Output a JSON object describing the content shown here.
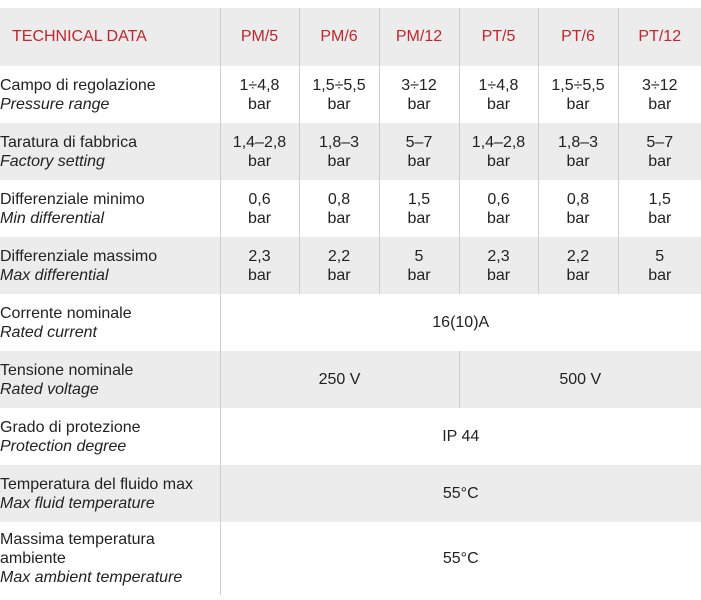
{
  "header": {
    "title": "TECHNICAL DATA",
    "models": [
      "PM/5",
      "PM/6",
      "PM/12",
      "PT/5",
      "PT/6",
      "PT/12"
    ]
  },
  "rows": [
    {
      "it": "Campo di regolazione",
      "en": "Pressure range",
      "values": [
        [
          "1÷4,8",
          "bar"
        ],
        [
          "1,5÷5,5",
          "bar"
        ],
        [
          "3÷12",
          "bar"
        ],
        [
          "1÷4,8",
          "bar"
        ],
        [
          "1,5÷5,5",
          "bar"
        ],
        [
          "3÷12",
          "bar"
        ]
      ]
    },
    {
      "it": "Taratura di fabbrica",
      "en": "Factory setting",
      "values": [
        [
          "1,4–2,8",
          "bar"
        ],
        [
          "1,8–3",
          "bar"
        ],
        [
          "5–7",
          "bar"
        ],
        [
          "1,4–2,8",
          "bar"
        ],
        [
          "1,8–3",
          "bar"
        ],
        [
          "5–7",
          "bar"
        ]
      ]
    },
    {
      "it": "Differenziale minimo",
      "en": "Min differential",
      "values": [
        [
          "0,6",
          "bar"
        ],
        [
          "0,8",
          "bar"
        ],
        [
          "1,5",
          "bar"
        ],
        [
          "0,6",
          "bar"
        ],
        [
          "0,8",
          "bar"
        ],
        [
          "1,5",
          "bar"
        ]
      ]
    },
    {
      "it": "Differenziale massimo",
      "en": "Max differential",
      "values": [
        [
          "2,3",
          "bar"
        ],
        [
          "2,2",
          "bar"
        ],
        [
          "5",
          "bar"
        ],
        [
          "2,3",
          "bar"
        ],
        [
          "2,2",
          "bar"
        ],
        [
          "5",
          "bar"
        ]
      ]
    }
  ],
  "rated_current": {
    "it": "Corrente nominale",
    "en": "Rated current",
    "value": "16(10)A"
  },
  "rated_voltage": {
    "it": "Tensione nominale",
    "en": "Rated voltage",
    "pm": "250 V",
    "pt": "500 V"
  },
  "protection": {
    "it": "Grado di protezione",
    "en": "Protection degree",
    "value": "IP 44"
  },
  "fluid_temp": {
    "it": "Temperatura del fluido max",
    "en": "Max fluid temperature",
    "value": "55°C"
  },
  "ambient_temp": {
    "it_line1": "Massima temperatura",
    "it_line2": "ambiente",
    "en": "Max ambient temperature",
    "value": "55°C"
  },
  "colors": {
    "header_red": "#c0262d",
    "shade": "#ececec",
    "divider": "#cfcfcf"
  }
}
